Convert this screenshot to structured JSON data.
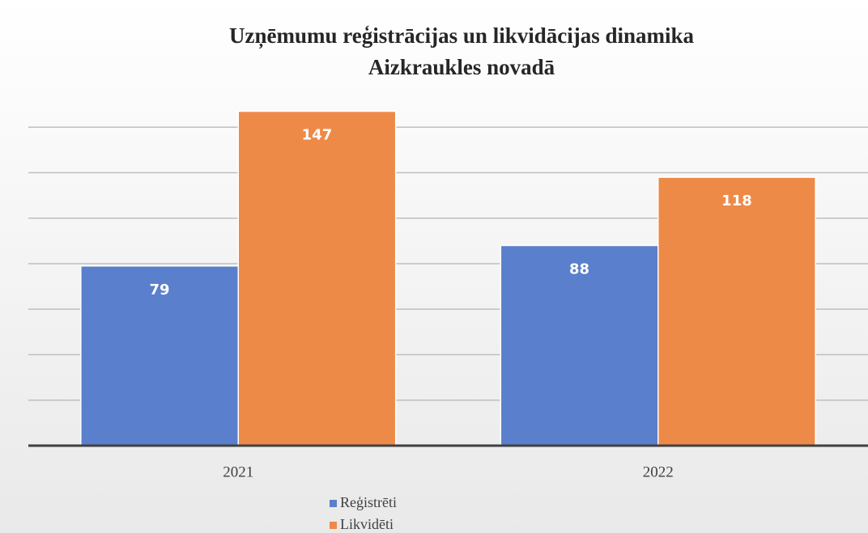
{
  "chart_data": {
    "type": "bar",
    "title": [
      "Uzņēmumu reģistrācijas un likvidācijas dinamika",
      "Aizkraukles novadā"
    ],
    "categories": [
      "2021",
      "2022"
    ],
    "series": [
      {
        "name": "Reģistrēti",
        "color": "#5a7fcc",
        "values": [
          79,
          88
        ]
      },
      {
        "name": "Likvidēti",
        "color": "#ee8a48",
        "values": [
          147,
          118
        ]
      }
    ],
    "ylim": [
      0,
      160
    ],
    "yticks": [
      0,
      20,
      40,
      60,
      80,
      100,
      120,
      140
    ],
    "grid": true,
    "legend": "bottom"
  }
}
